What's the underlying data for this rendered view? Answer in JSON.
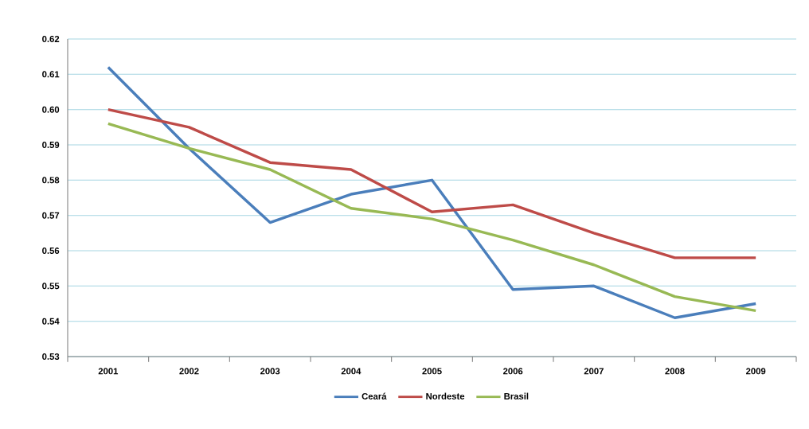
{
  "chart_data": {
    "type": "line",
    "categories": [
      "2001",
      "2002",
      "2003",
      "2004",
      "2005",
      "2006",
      "2007",
      "2008",
      "2009"
    ],
    "series": [
      {
        "name": "Ceará",
        "color": "#4a7ebb",
        "values": [
          0.612,
          0.589,
          0.568,
          0.576,
          0.58,
          0.549,
          0.55,
          0.541,
          0.545
        ]
      },
      {
        "name": "Nordeste",
        "color": "#be4b48",
        "values": [
          0.6,
          0.595,
          0.585,
          0.583,
          0.571,
          0.573,
          0.565,
          0.558,
          0.558
        ]
      },
      {
        "name": "Brasil",
        "color": "#98b954",
        "values": [
          0.596,
          0.589,
          0.583,
          0.572,
          0.569,
          0.563,
          0.556,
          0.547,
          0.543
        ]
      }
    ],
    "ylim": [
      0.53,
      0.62
    ],
    "yticks": [
      {
        "value": 0.53,
        "label": "0.53"
      },
      {
        "value": 0.54,
        "label": "0.54"
      },
      {
        "value": 0.55,
        "label": "0.55"
      },
      {
        "value": 0.56,
        "label": "0.56"
      },
      {
        "value": 0.57,
        "label": "0.57"
      },
      {
        "value": 0.58,
        "label": "0.58"
      },
      {
        "value": 0.59,
        "label": "0.59"
      },
      {
        "value": 0.6,
        "label": "0.60"
      },
      {
        "value": 0.61,
        "label": "0.61"
      },
      {
        "value": 0.62,
        "label": "0.62"
      }
    ],
    "grid": "y",
    "legend": "bottom",
    "marker": "none",
    "line_style": "solid"
  }
}
